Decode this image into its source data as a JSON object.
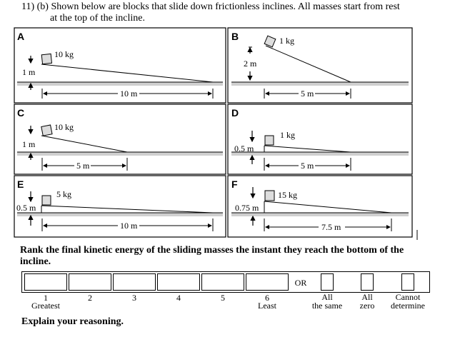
{
  "question": {
    "title_line1": "11) (b) Shown below are blocks that slide down frictionless inclines. All masses start from rest",
    "title_line2": "at the top of the incline.",
    "prompt": "Rank the final kinetic energy of the sliding masses the instant they reach the bottom of the incline.",
    "explain": "Explain your reasoning."
  },
  "panels": [
    {
      "letter": "A",
      "mass": "10 kg",
      "height": "1 m",
      "length": "10 m"
    },
    {
      "letter": "B",
      "mass": "1 kg",
      "height": "2 m",
      "length": "5 m"
    },
    {
      "letter": "C",
      "mass": "10 kg",
      "height": "1 m",
      "length": "5 m"
    },
    {
      "letter": "D",
      "mass": "1 kg",
      "height": "0.5 m",
      "length": "5 m"
    },
    {
      "letter": "E",
      "mass": "5 kg",
      "height": "0.5 m",
      "length": "10 m"
    },
    {
      "letter": "F",
      "mass": "15 kg",
      "height": "0.75 m",
      "length": "7.5 m"
    }
  ],
  "ranking": {
    "positions": [
      "1",
      "2",
      "3",
      "4",
      "5",
      "6"
    ],
    "greatest": "Greatest",
    "least": "Least",
    "or": "OR",
    "options": [
      {
        "line1": "All",
        "line2": "the same"
      },
      {
        "line1": "All",
        "line2": "zero"
      },
      {
        "line1": "Cannot",
        "line2": "determine"
      }
    ]
  }
}
